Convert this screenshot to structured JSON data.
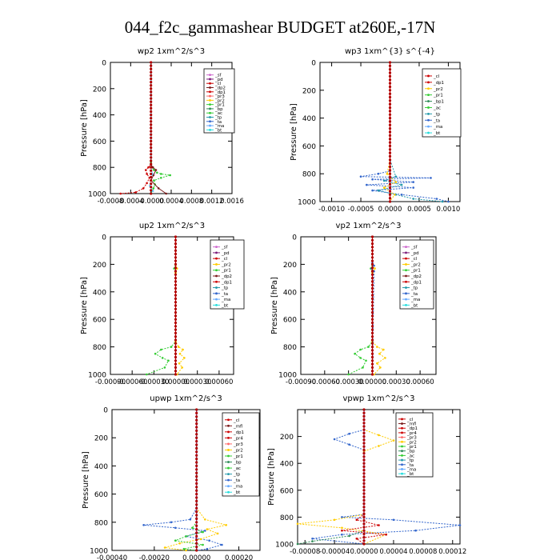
{
  "page": {
    "title": "044_f2c_gammashear  BUDGET at260E,-17N"
  },
  "chart_data": [
    {
      "type": "line",
      "title": "wp2   1xm^2/s^3",
      "ylabel": "Pressure [hPa]",
      "xlim": [
        -0.0008,
        0.0016
      ],
      "ylim": [
        1000,
        0
      ],
      "grid": false,
      "xtick_labels": [
        "-0.0008",
        "-0.0004",
        "-0.0000",
        "0.0004",
        "0.0008",
        "0.0012",
        "0.0016"
      ],
      "ytick_labels": [
        "0",
        "200",
        "400",
        "600",
        "800",
        "1000"
      ],
      "legend": {
        "placement": "top-right",
        "entries": [
          "_sf",
          "_pd",
          "_cl",
          "_dp2",
          "_dp1",
          "_pr3",
          "_pr2",
          "_pr1",
          "_bp",
          "_ac",
          "_tp",
          "_ta",
          "_ma",
          "_bt"
        ]
      },
      "series": [
        {
          "name": "_pr1",
          "color": "#33cc33",
          "x": [
            0,
            0,
            0,
            2e-05,
            6e-05,
            0.00012,
            0.0002,
            0.00038,
            0.0002,
            6e-05,
            8e-05,
            5e-05,
            0
          ],
          "y": [
            0,
            600,
            760,
            800,
            820,
            840,
            850,
            860,
            880,
            900,
            930,
            960,
            1000
          ]
        },
        {
          "name": "_dp1",
          "color": "#cc0000",
          "x": [
            0,
            0,
            0,
            -5e-05,
            -0.0001,
            -8e-05,
            -3e-05,
            -8e-05,
            -0.00015,
            -0.0003,
            -0.0006
          ],
          "y": [
            0,
            600,
            780,
            800,
            820,
            850,
            880,
            920,
            960,
            990,
            1000
          ]
        },
        {
          "name": "_cl",
          "color": "#7a1a1a",
          "x": [
            0,
            0,
            0,
            4e-05,
            0.0001,
            5e-05,
            0,
            0.00015,
            0.0003
          ],
          "y": [
            0,
            600,
            780,
            800,
            820,
            860,
            900,
            960,
            1000
          ]
        },
        {
          "name": "_bt",
          "color": "#66ccff",
          "x": [
            0,
            0,
            0,
            3e-05,
            0,
            -2e-05,
            4e-05,
            0
          ],
          "y": [
            0,
            600,
            800,
            850,
            900,
            940,
            980,
            1000
          ]
        }
      ]
    },
    {
      "type": "line",
      "title": "wp3   1xm^{3} s^{-4}",
      "ylabel": "Pressure [hPa]",
      "xlim": [
        -0.0012,
        0.0012
      ],
      "ylim": [
        1000,
        0
      ],
      "grid": false,
      "xtick_labels": [
        "-0.0010",
        "-0.0005",
        "0.0000",
        "0.0005",
        "0.0010"
      ],
      "ytick_labels": [
        "0",
        "200",
        "400",
        "600",
        "800",
        "1000"
      ],
      "legend": {
        "placement": "top-right",
        "entries": [
          "_cl",
          "_dp1",
          "_pr2",
          "_pr1",
          "_bp1",
          "_ac",
          "_tp",
          "_ta",
          "_ma",
          "_bt"
        ]
      },
      "series": [
        {
          "name": "_ta",
          "color": "#3366cc",
          "x": [
            0,
            0,
            0,
            -0.0002,
            -0.0005,
            0.0007,
            -0.0003,
            0.0004,
            -0.0004,
            0.0004,
            -0.0003,
            0.0002,
            0.0008,
            0.001
          ],
          "y": [
            0,
            600,
            780,
            800,
            820,
            830,
            840,
            860,
            880,
            900,
            920,
            950,
            980,
            1000
          ]
        },
        {
          "name": "_tp",
          "color": "#2299aa",
          "x": [
            0,
            0,
            0.0001,
            -0.0001,
            0.0002,
            -0.0002,
            0.0001,
            0.0004,
            0.0009
          ],
          "y": [
            0,
            700,
            820,
            850,
            880,
            920,
            950,
            980,
            1000
          ]
        },
        {
          "name": "_pr2",
          "color": "#ffcc00",
          "x": [
            0,
            0,
            -5e-05,
            0.0001,
            -0.0001,
            8e-05,
            0
          ],
          "y": [
            0,
            700,
            800,
            860,
            900,
            950,
            1000
          ]
        },
        {
          "name": "_cl",
          "color": "#cc0000",
          "x": [
            0,
            0,
            0,
            0,
            0,
            0
          ],
          "y": [
            0,
            200,
            400,
            600,
            800,
            1000
          ]
        }
      ]
    },
    {
      "type": "line",
      "title": "up2   1xm^2/s^3",
      "ylabel": "Pressure [hPa]",
      "xlim": [
        -0.0009,
        0.0008
      ],
      "ylim": [
        1000,
        0
      ],
      "grid": false,
      "xtick_labels": [
        "-0.00090",
        "-0.00060",
        "-0.00030",
        "0.00000",
        "0.00030",
        "0.00060"
      ],
      "ytick_labels": [
        "0",
        "200",
        "400",
        "600",
        "800",
        "1000"
      ],
      "legend": {
        "placement": "top-right",
        "entries": [
          "_sf",
          "_pd",
          "_cl",
          "_pr2",
          "_pr1",
          "_dp2",
          "_dp1",
          "_tp",
          "_ta",
          "_ma",
          "_bt"
        ]
      },
      "series": [
        {
          "name": "_pr1",
          "color": "#33cc33",
          "x": [
            0,
            0,
            -2e-05,
            0,
            0,
            -6e-05,
            -0.0002,
            -0.00028,
            -0.00018,
            -0.0001,
            -0.00015,
            -0.0004
          ],
          "y": [
            0,
            200,
            230,
            260,
            760,
            800,
            820,
            850,
            880,
            900,
            950,
            1000
          ]
        },
        {
          "name": "_pr2",
          "color": "#ffcc00",
          "x": [
            0,
            0,
            2e-05,
            0,
            0,
            4e-05,
            0.0001,
            6e-05,
            0.00012,
            5e-05,
            9e-05,
            2e-05
          ],
          "y": [
            0,
            200,
            230,
            260,
            760,
            800,
            820,
            850,
            880,
            920,
            950,
            1000
          ]
        },
        {
          "name": "_cl",
          "color": "#cc0000",
          "x": [
            0,
            0,
            0,
            0,
            0,
            0
          ],
          "y": [
            0,
            200,
            400,
            600,
            800,
            1000
          ]
        }
      ]
    },
    {
      "type": "line",
      "title": "vp2   1xm^2/s^3",
      "ylabel": "Pressure [hPa]",
      "xlim": [
        -0.0009,
        0.0008
      ],
      "ylim": [
        1000,
        0
      ],
      "grid": false,
      "xtick_labels": [
        "-0.00090",
        "-0.00060",
        "-0.00030",
        "0.00000",
        "0.00030",
        "0.00060"
      ],
      "ytick_labels": [
        "0",
        "200",
        "400",
        "600",
        "800",
        "1000"
      ],
      "legend": {
        "placement": "top-right",
        "entries": [
          "_sf",
          "_pd",
          "_cl",
          "_pr2",
          "_pr1",
          "_dp2",
          "_dp1",
          "_tp",
          "_ta",
          "_ma",
          "_bt"
        ]
      },
      "series": [
        {
          "name": "_pr1",
          "color": "#33cc33",
          "x": [
            0,
            0,
            -2e-05,
            0,
            0,
            -5e-05,
            -0.00015,
            -0.00022,
            -0.00015,
            -8e-05,
            -0.00012,
            -0.0003
          ],
          "y": [
            0,
            200,
            230,
            260,
            760,
            800,
            820,
            850,
            880,
            900,
            950,
            1000
          ]
        },
        {
          "name": "_pr2",
          "color": "#ffcc00",
          "x": [
            0,
            0,
            3e-05,
            0,
            0,
            6e-05,
            0.00014,
            9e-05,
            0.00016,
            6e-05,
            0.0001,
            2e-05
          ],
          "y": [
            0,
            200,
            230,
            260,
            760,
            800,
            820,
            850,
            880,
            920,
            950,
            1000
          ]
        },
        {
          "name": "_ta",
          "color": "#3366cc",
          "x": [
            0,
            0,
            2e-05,
            -1e-05,
            2e-05,
            0
          ],
          "y": [
            0,
            190,
            210,
            230,
            250,
            1000
          ]
        },
        {
          "name": "_cl",
          "color": "#cc0000",
          "x": [
            0,
            0,
            0,
            0,
            0,
            0
          ],
          "y": [
            0,
            200,
            400,
            600,
            800,
            1000
          ]
        }
      ]
    },
    {
      "type": "line",
      "title": "upwp   1xm^2/s^3",
      "ylabel": "Pressure [hPa]",
      "xlim": [
        -0.0004,
        0.0003
      ],
      "ylim": [
        1000,
        0
      ],
      "grid": false,
      "xtick_labels": [
        "-0.00040",
        "-0.00020",
        "0.00000",
        "0.00020"
      ],
      "ytick_labels": [
        "0",
        "200",
        "400",
        "600",
        "800",
        "1000"
      ],
      "legend": {
        "placement": "top-right",
        "entries": [
          "_cl",
          "_mfl",
          "_dp1",
          "_pr4",
          "_pr3",
          "_pr2",
          "_pr1",
          "_bp",
          "_ac",
          "_tp",
          "_ta",
          "_ma",
          "_bt"
        ]
      },
      "series": [
        {
          "name": "_ta",
          "color": "#3366cc",
          "x": [
            0,
            0,
            -3e-05,
            -0.00012,
            -0.00025,
            -0.0001,
            4e-05,
            -5e-05,
            6e-05,
            0.00012,
            5e-05,
            0
          ],
          "y": [
            0,
            700,
            780,
            800,
            820,
            840,
            860,
            900,
            930,
            960,
            990,
            1000
          ]
        },
        {
          "name": "_pr2",
          "color": "#ffcc00",
          "x": [
            0,
            0,
            4e-05,
            0.00014,
            5e-05,
            0.0001,
            2e-05,
            -8e-05,
            -0.00015,
            -5e-05
          ],
          "y": [
            0,
            700,
            780,
            820,
            850,
            880,
            920,
            950,
            980,
            1000
          ]
        },
        {
          "name": "_pr1",
          "color": "#33cc33",
          "x": [
            0,
            0,
            -2e-05,
            3e-05,
            -5e-05,
            -0.0001,
            3e-05,
            -6e-05,
            0
          ],
          "y": [
            0,
            800,
            840,
            870,
            900,
            930,
            960,
            990,
            1000
          ]
        },
        {
          "name": "_cl",
          "color": "#7a1a7a",
          "x": [
            0,
            0,
            0,
            0,
            0,
            0
          ],
          "y": [
            0,
            200,
            400,
            600,
            800,
            1000
          ]
        }
      ]
    },
    {
      "type": "line",
      "title": "vpwp   1xm^2/s^3",
      "ylabel": "Pressure [hPa]",
      "xlim": [
        -9e-05,
        0.00013
      ],
      "ylim": [
        1000,
        0
      ],
      "grid": false,
      "xtick_labels": [
        "-0.00008",
        "-0.00004",
        "0.00000",
        "0.00004",
        "0.00008",
        "0.00012"
      ],
      "ytick_labels": [
        "200",
        "400",
        "600",
        "800",
        "1000"
      ],
      "legend": {
        "placement": "top-right",
        "entries": [
          "_cl",
          "_mfl",
          "_dp1",
          "_pr4",
          "_pr3",
          "_pr2",
          "_pr1",
          "_bp",
          "_ac",
          "_tp",
          "_ta",
          "_ma",
          "_bt"
        ]
      },
      "series": [
        {
          "name": "_ta",
          "color": "#3366cc",
          "x": [
            0,
            0,
            -2e-05,
            -4e-05,
            -2e-05,
            0,
            0,
            -3e-05,
            4e-05,
            0.00013,
            7e-05,
            -3e-05,
            -7e-05,
            0
          ],
          "y": [
            0,
            150,
            180,
            220,
            260,
            300,
            780,
            800,
            820,
            860,
            900,
            930,
            960,
            1000
          ]
        },
        {
          "name": "_pr2",
          "color": "#ffcc00",
          "x": [
            0,
            0,
            2e-05,
            4e-05,
            2e-05,
            0,
            0,
            -4e-05,
            -9e-05,
            -3e-05,
            3e-05,
            0
          ],
          "y": [
            0,
            150,
            190,
            230,
            270,
            310,
            780,
            820,
            850,
            880,
            930,
            1000
          ]
        },
        {
          "name": "_dp1",
          "color": "#cc0000",
          "x": [
            0,
            0,
            -1e-05,
            2e-05,
            -3e-05,
            3e-05,
            -1e-05,
            0
          ],
          "y": [
            0,
            780,
            820,
            860,
            900,
            930,
            960,
            1000
          ]
        },
        {
          "name": "_bp",
          "color": "#2e8b57",
          "x": [
            0,
            0,
            -2e-05,
            -7e-05,
            -9e-05
          ],
          "y": [
            0,
            900,
            940,
            980,
            1000
          ]
        },
        {
          "name": "_cl",
          "color": "#7a1a7a",
          "x": [
            0,
            0,
            0,
            0,
            0,
            0
          ],
          "y": [
            0,
            200,
            400,
            600,
            800,
            1000
          ]
        }
      ]
    }
  ]
}
